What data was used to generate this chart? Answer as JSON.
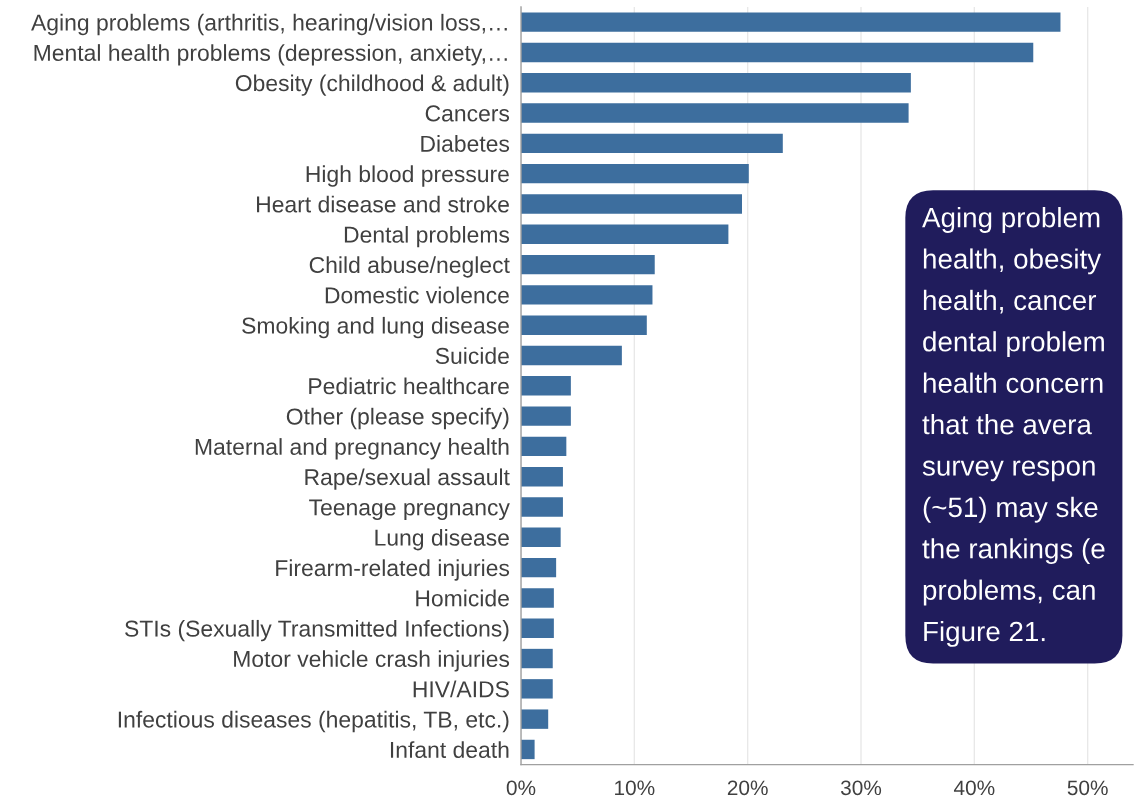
{
  "chart_data": {
    "type": "bar",
    "orientation": "horizontal",
    "categories": [
      "Aging problems (arthritis, hearing/vision loss,…",
      "Mental health problems (depression, anxiety,…",
      "Obesity (childhood & adult)",
      "Cancers",
      "Diabetes",
      "High blood pressure",
      "Heart disease and stroke",
      "Dental problems",
      "Child abuse/neglect",
      "Domestic violence",
      "Smoking and lung disease",
      "Suicide",
      "Pediatric healthcare",
      "Other (please specify)",
      "Maternal and pregnancy health",
      "Rape/sexual assault",
      "Teenage pregnancy",
      "Lung disease",
      "Firearm-related injuries",
      "Homicide",
      "STIs (Sexually Transmitted Infections)",
      "Motor vehicle crash injuries",
      "HIV/AIDS",
      "Infectious diseases (hepatitis, TB, etc.)",
      "Infant death"
    ],
    "values": [
      47.6,
      45.2,
      34.4,
      34.2,
      23.1,
      20.1,
      19.5,
      18.3,
      11.8,
      11.6,
      11.1,
      8.9,
      4.4,
      4.4,
      4.0,
      3.7,
      3.7,
      3.5,
      3.1,
      2.9,
      2.9,
      2.8,
      2.8,
      2.4,
      1.2
    ],
    "color": "#3d6e9e",
    "xlim": [
      0,
      54
    ],
    "xticks": [
      {
        "value": 0,
        "label": "0%"
      },
      {
        "value": 10,
        "label": "10%"
      },
      {
        "value": 20,
        "label": "20%"
      },
      {
        "value": 30,
        "label": "30%"
      },
      {
        "value": 40,
        "label": "40%"
      },
      {
        "value": 50,
        "label": "50%"
      }
    ],
    "grid": "x",
    "annotations": [
      "Aging problem\nhealth, obesity\nhealth, cancer\ndental problem\nhealth concern\nthat the avera\nsurvey respon\n(~51) may ske\nthe rankings (e\nproblems, can\nFigure 21."
    ]
  }
}
